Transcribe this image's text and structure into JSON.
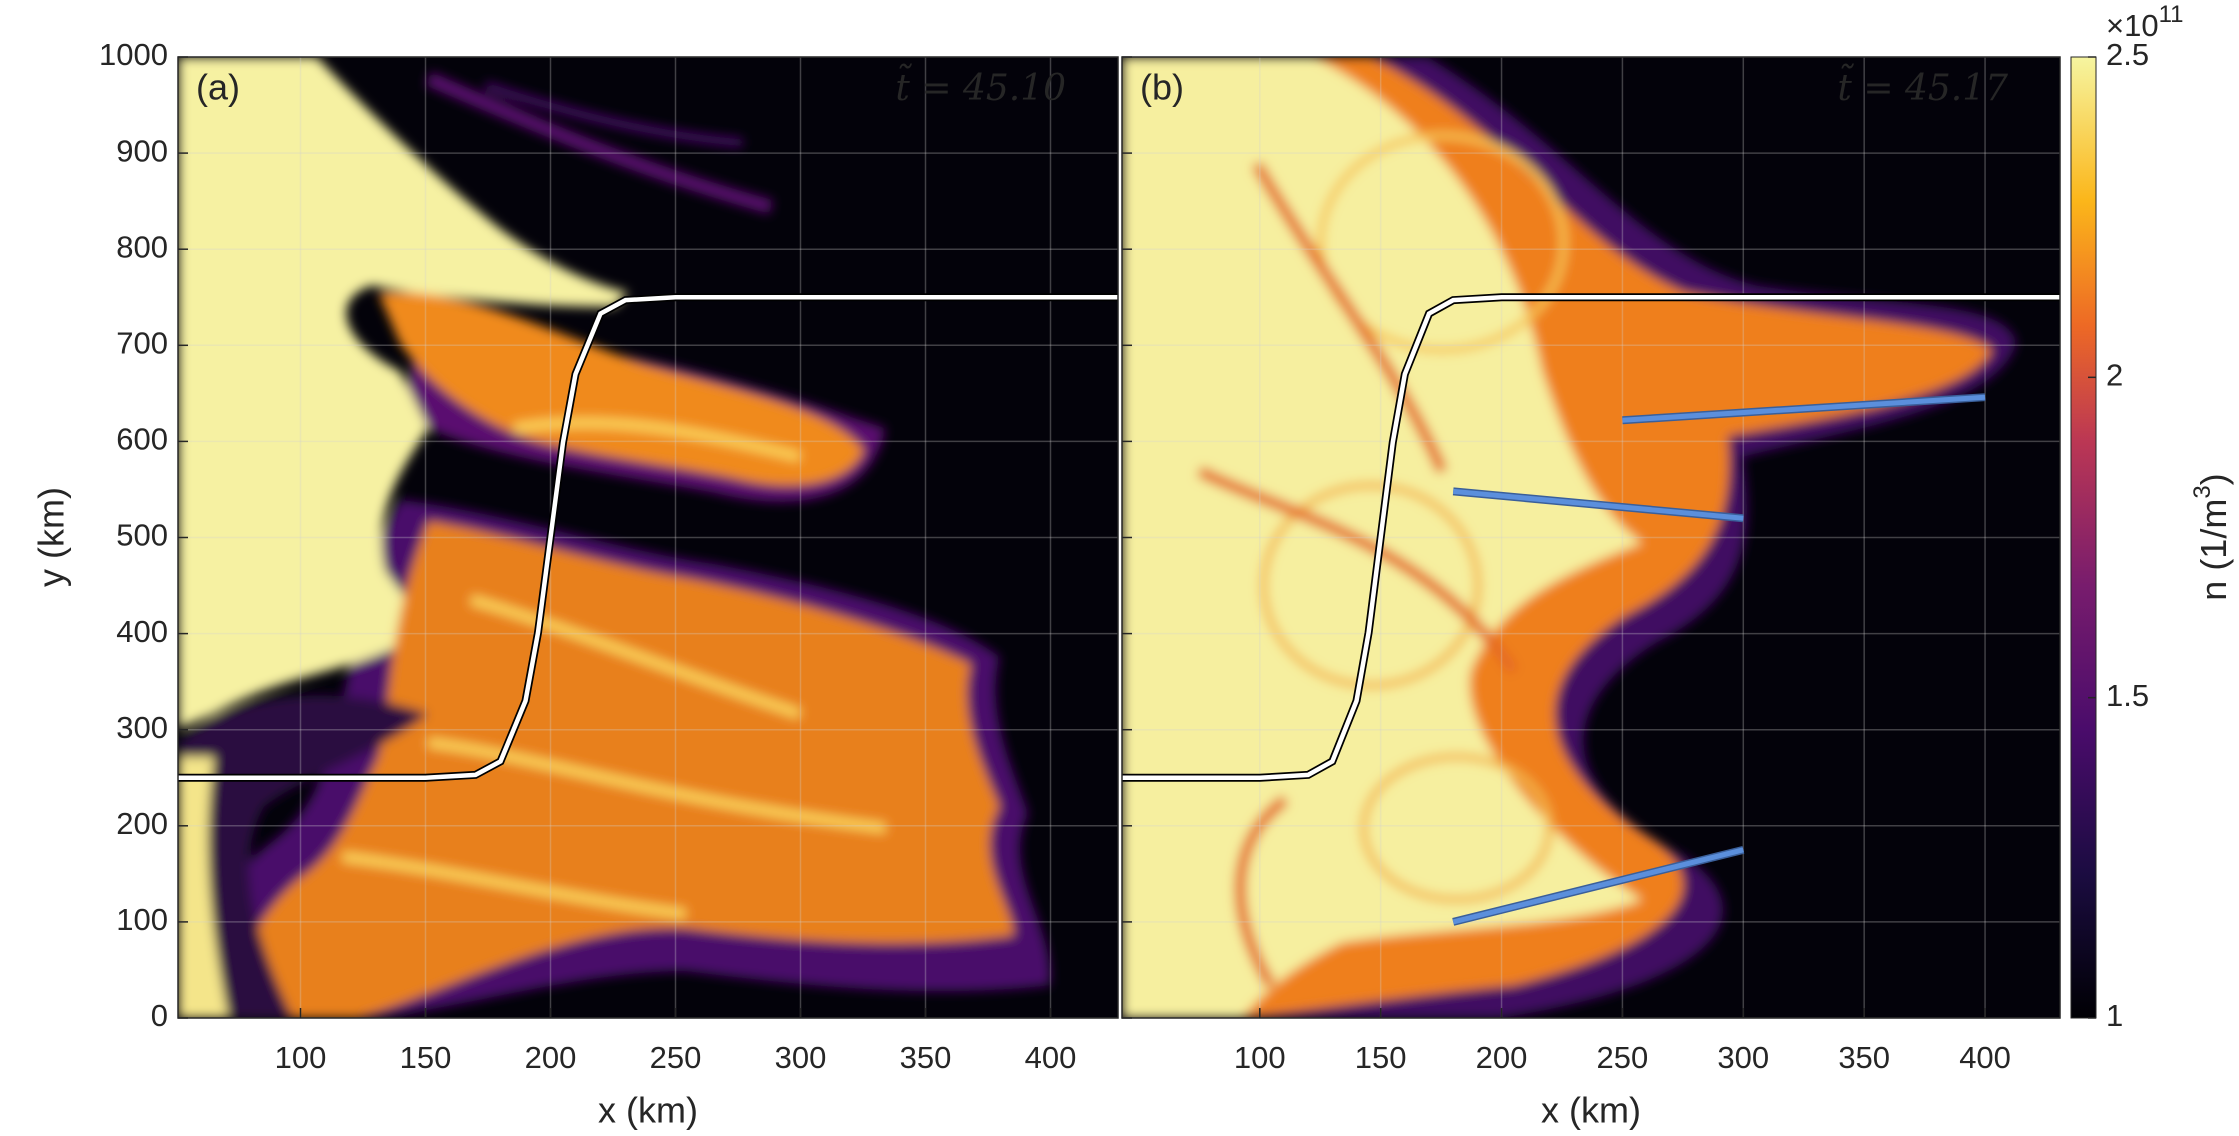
{
  "chart_data": [
    {
      "type": "heatmap",
      "panel_label": "(a)",
      "annotation": "t̃ = 45.10",
      "x_label": "x (km)",
      "y_label": "y (km)",
      "xlim": [
        51,
        427
      ],
      "ylim": [
        0,
        1000
      ],
      "xticks": [
        100,
        150,
        200,
        250,
        300,
        350,
        400
      ],
      "yticks": [
        0,
        100,
        200,
        300,
        400,
        500,
        600,
        700,
        800,
        900,
        1000
      ],
      "boundary": {
        "x": [
          51,
          150,
          170,
          180,
          190,
          195,
          200,
          205,
          210,
          220,
          230,
          250,
          427
        ],
        "y": [
          250,
          250,
          253,
          267,
          330,
          401,
          500,
          599,
          670,
          733,
          747,
          750,
          750
        ]
      }
    },
    {
      "type": "heatmap",
      "panel_label": "(b)",
      "annotation": "t̃ = 45.17",
      "x_label": "x (km)",
      "xlim": [
        43,
        431
      ],
      "ylim": [
        0,
        1000
      ],
      "xticks": [
        100,
        150,
        200,
        250,
        300,
        350,
        400
      ],
      "boundary": {
        "x": [
          43,
          100,
          120,
          130,
          140,
          145,
          150,
          155,
          160,
          170,
          180,
          200,
          431
        ],
        "y": [
          250,
          250,
          253,
          267,
          330,
          401,
          500,
          599,
          670,
          733,
          747,
          750,
          750
        ]
      },
      "lines": [
        {
          "x": [
            180,
            300
          ],
          "y": [
            100,
            175
          ]
        },
        {
          "x": [
            180,
            300
          ],
          "y": [
            548,
            520
          ]
        },
        {
          "x": [
            250,
            400
          ],
          "y": [
            622,
            646
          ]
        }
      ],
      "line_color": "#5b8fdc"
    }
  ],
  "colorbar": {
    "lim": [
      1,
      2.5
    ],
    "ticks": [
      1,
      1.5,
      2,
      2.5
    ],
    "multiplier": "×10",
    "exponent": "11",
    "label": "n (1/m",
    "label_sup": "3",
    "label_end": ")"
  }
}
